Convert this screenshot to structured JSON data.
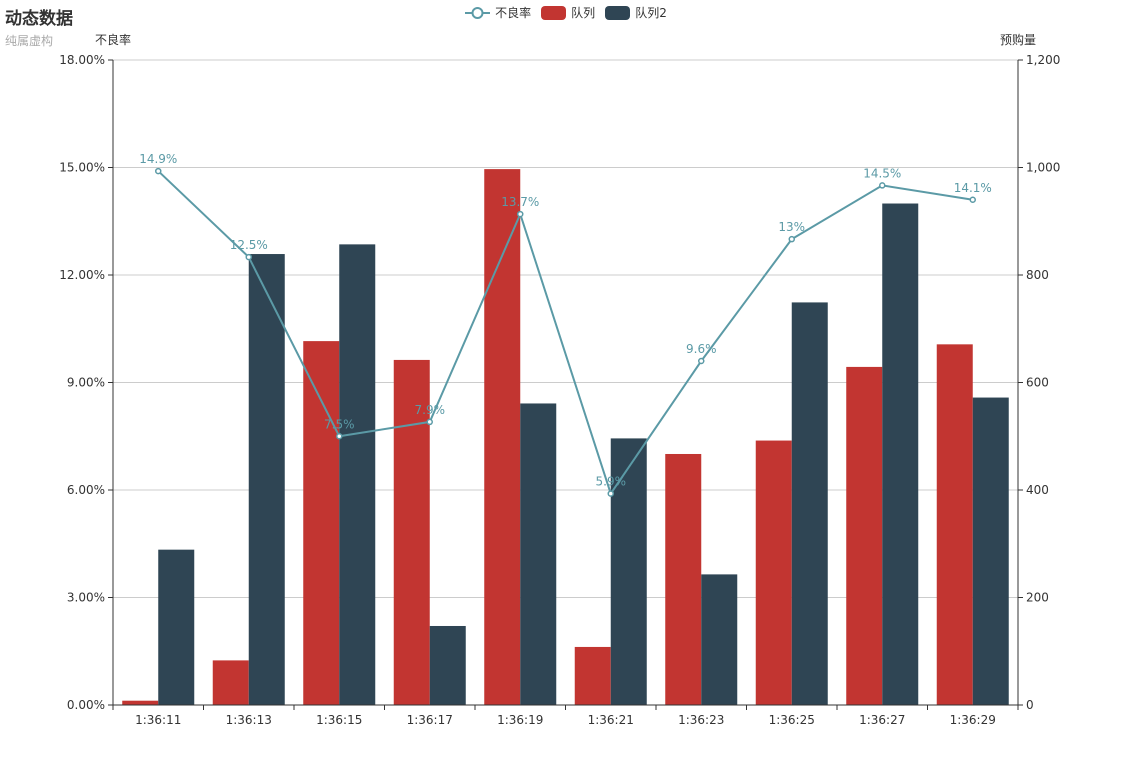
{
  "chart_data": {
    "type": "bar",
    "title": "动态数据",
    "subtitle": "纯属虚构",
    "categories": [
      "1:36:11",
      "1:36:13",
      "1:36:15",
      "1:36:17",
      "1:36:19",
      "1:36:21",
      "1:36:23",
      "1:36:25",
      "1:36:27",
      "1:36:29"
    ],
    "left_axis": {
      "name": "不良率",
      "ylim": [
        0,
        18
      ],
      "ticks": [
        "0.00%",
        "3.00%",
        "6.00%",
        "9.00%",
        "12.00%",
        "15.00%",
        "18.00%"
      ]
    },
    "right_axis": {
      "name": "预购量",
      "ylim": [
        0,
        1200
      ],
      "ticks": [
        "0",
        "200",
        "400",
        "600",
        "800",
        "1,000",
        "1,200"
      ]
    },
    "series": [
      {
        "name": "不良率",
        "type": "line",
        "axis": "left",
        "color": "#5b9aa6",
        "values": [
          14.9,
          12.5,
          7.5,
          7.9,
          13.7,
          5.9,
          9.6,
          13,
          14.5,
          14.1
        ],
        "labels": [
          "14.9%",
          "12.5%",
          "7.5%",
          "7.9%",
          "13.7%",
          "5.9%",
          "9.6%",
          "13%",
          "14.5%",
          "14.1%"
        ]
      },
      {
        "name": "队列",
        "type": "bar",
        "axis": "right",
        "color": "#c23531",
        "values": [
          8,
          83,
          677,
          642,
          997,
          108,
          467,
          492,
          629,
          671
        ]
      },
      {
        "name": "队列2",
        "type": "bar",
        "axis": "right",
        "color": "#2f4554",
        "values": [
          289,
          839,
          857,
          147,
          561,
          496,
          243,
          749,
          933,
          572
        ]
      }
    ],
    "legend": [
      "不良率",
      "队列",
      "队列2"
    ],
    "grid": true
  }
}
